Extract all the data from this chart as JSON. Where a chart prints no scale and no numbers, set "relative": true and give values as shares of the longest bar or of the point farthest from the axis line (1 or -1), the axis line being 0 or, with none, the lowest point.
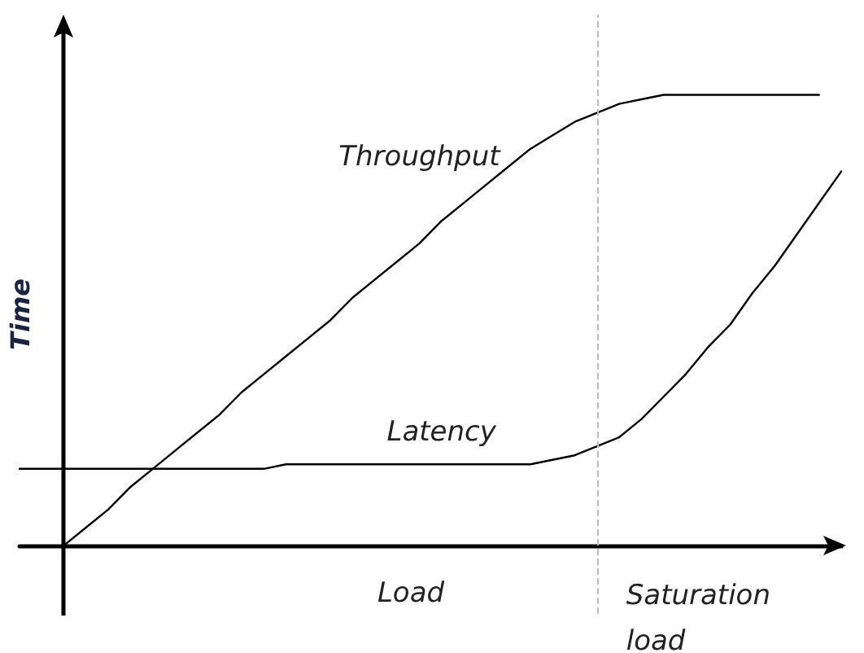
{
  "chart_data": {
    "type": "line",
    "relative": true,
    "xlabel": "Load",
    "ylabel": "Time",
    "marker": "none",
    "categories": [
      null,
      null,
      null,
      null,
      null,
      null,
      null,
      null,
      null,
      null,
      null,
      null,
      null,
      null,
      null,
      null,
      null,
      null,
      null,
      null,
      null,
      null,
      null,
      null,
      null,
      null,
      null,
      null,
      null,
      null,
      null,
      null,
      null,
      null,
      null,
      null,
      null,
      null
    ],
    "series": [
      {
        "name": "Throughput",
        "color": "#000000",
        "values": [
          null,
          null,
          0,
          0.04,
          0.08,
          0.13,
          0.17,
          0.21,
          0.25,
          0.29,
          0.34,
          0.38,
          0.42,
          0.46,
          0.5,
          0.55,
          0.59,
          0.63,
          0.67,
          0.72,
          0.76,
          0.8,
          0.84,
          0.88,
          0.91,
          0.94,
          0.96,
          0.98,
          0.99,
          1,
          1,
          1,
          1,
          1,
          1,
          1,
          1,
          null
        ]
      },
      {
        "name": "Latency",
        "color": "#000000",
        "values": [
          0.17,
          0.17,
          0.17,
          0.17,
          0.17,
          0.17,
          0.17,
          0.17,
          0.17,
          0.17,
          0.17,
          0.17,
          0.18,
          0.18,
          0.18,
          0.18,
          0.18,
          0.18,
          0.18,
          0.18,
          0.18,
          0.18,
          0.18,
          0.18,
          0.19,
          0.2,
          0.22,
          0.24,
          0.28,
          0.33,
          0.38,
          0.44,
          0.49,
          0.56,
          0.62,
          0.69,
          0.76,
          0.83
        ]
      }
    ],
    "ref_lines": [
      {
        "axis": "x",
        "label": "Saturation load",
        "color": "#bbbbbb",
        "line_style": "dashed"
      }
    ]
  }
}
